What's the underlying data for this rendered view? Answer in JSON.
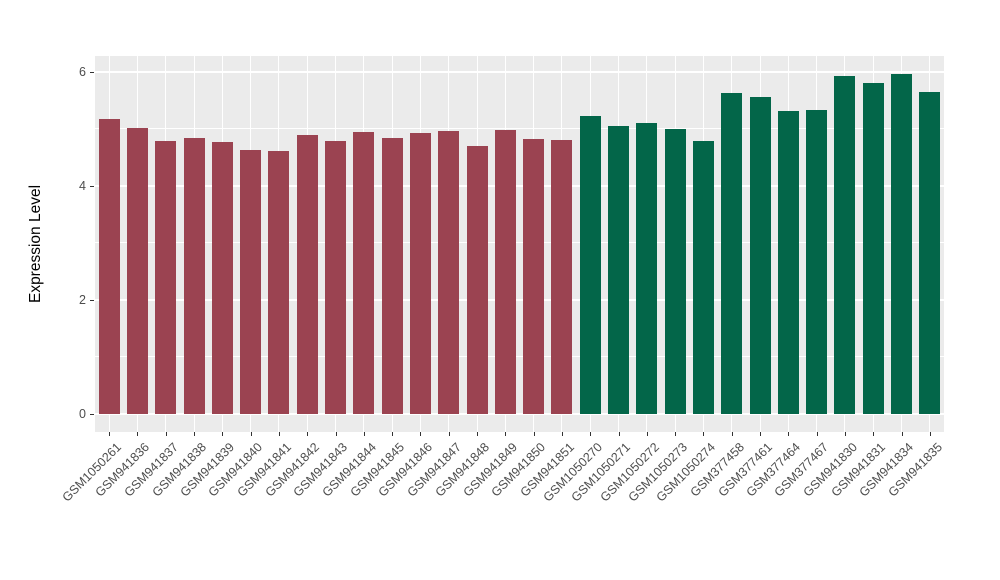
{
  "chart_data": {
    "type": "bar",
    "title": "",
    "xlabel": "",
    "ylabel": "Expression Level",
    "ylim": [
      0,
      6.6
    ],
    "yticks": [
      0,
      2,
      4,
      6
    ],
    "yticks_minor": [
      1,
      3,
      5
    ],
    "grid": true,
    "legend_position": "none",
    "panel_background_color": "#EBEBEB",
    "gridline_color": "#FFFFFF",
    "axis_text_color": "#4D4D4D",
    "group_colors": {
      "group1": "#9B4351",
      "group2": "#036649"
    },
    "categories": [
      "GSM1050261",
      "GSM941836",
      "GSM941837",
      "GSM941838",
      "GSM941839",
      "GSM941840",
      "GSM941841",
      "GSM941842",
      "GSM941843",
      "GSM941844",
      "GSM941845",
      "GSM941846",
      "GSM941847",
      "GSM941848",
      "GSM941849",
      "GSM941850",
      "GSM941851",
      "GSM1050270",
      "GSM1050271",
      "GSM1050272",
      "GSM1050273",
      "GSM1050274",
      "GSM377458",
      "GSM377461",
      "GSM377464",
      "GSM377467",
      "GSM941830",
      "GSM941831",
      "GSM941834",
      "GSM941835"
    ],
    "values": [
      5.17,
      5.01,
      4.79,
      4.84,
      4.76,
      4.63,
      4.61,
      4.89,
      4.78,
      4.95,
      4.84,
      4.93,
      4.96,
      4.7,
      4.98,
      4.82,
      4.8,
      5.22,
      5.04,
      5.1,
      5.0,
      4.78,
      5.62,
      5.55,
      5.31,
      5.33,
      5.93,
      5.8,
      5.96,
      5.65
    ],
    "groups": [
      "group1",
      "group1",
      "group1",
      "group1",
      "group1",
      "group1",
      "group1",
      "group1",
      "group1",
      "group1",
      "group1",
      "group1",
      "group1",
      "group1",
      "group1",
      "group1",
      "group1",
      "group2",
      "group2",
      "group2",
      "group2",
      "group2",
      "group2",
      "group2",
      "group2",
      "group2",
      "group2",
      "group2",
      "group2",
      "group2"
    ]
  }
}
